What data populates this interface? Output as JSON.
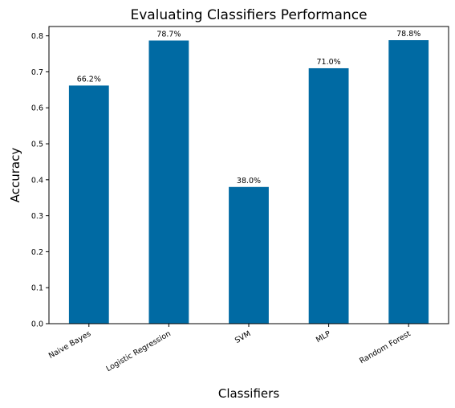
{
  "chart_data": {
    "type": "bar",
    "title": "Evaluating Classifiers Performance",
    "xlabel": "Classifiers",
    "ylabel": "Accuracy",
    "categories": [
      "Naive Bayes",
      "Logistic Regression",
      "SVM",
      "MLP",
      "Random Forest"
    ],
    "values": [
      0.662,
      0.787,
      0.38,
      0.71,
      0.788
    ],
    "data_labels": [
      "66.2%",
      "78.7%",
      "38.0%",
      "71.0%",
      "78.8%"
    ],
    "y_ticks": [
      "0.0",
      "0.1",
      "0.2",
      "0.3",
      "0.4",
      "0.5",
      "0.6",
      "0.7",
      "0.8"
    ],
    "ylim": [
      0,
      0.826
    ],
    "bar_color": "#006aa3",
    "grid": false,
    "legend": "none",
    "x_tick_rotation": "30 degrees"
  }
}
